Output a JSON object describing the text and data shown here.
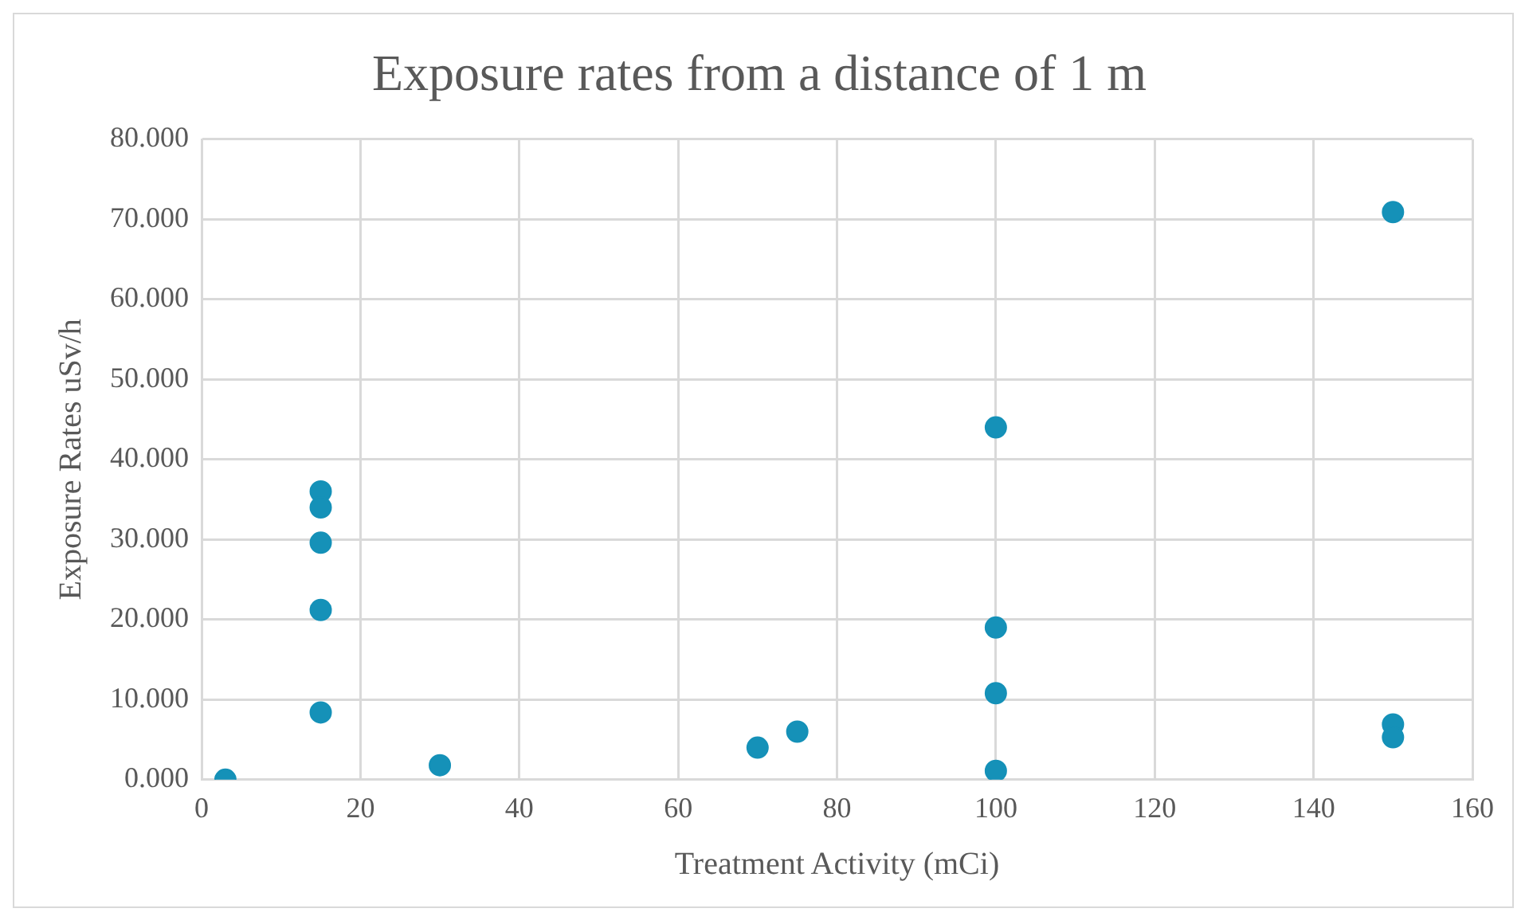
{
  "chart_data": {
    "type": "scatter",
    "title": "Exposure rates from a distance of 1 m",
    "xlabel": "Treatment Activity (mCi)",
    "ylabel": "Exposure Rates uSv/h",
    "x": [
      3,
      15,
      15,
      15,
      15,
      15,
      30,
      70,
      75,
      100,
      100,
      100,
      100,
      150,
      150,
      150
    ],
    "values": [
      0,
      36.0,
      34.0,
      29.6,
      21.2,
      8.4,
      1.8,
      4.0,
      6.0,
      44.0,
      19.0,
      10.8,
      1.1,
      70.9,
      6.9,
      5.3
    ],
    "color": "#1591b8",
    "marker": "circle",
    "grid": true,
    "legend": false,
    "xlim": [
      0,
      160
    ],
    "xticks": [
      0,
      20,
      40,
      60,
      80,
      100,
      120,
      140,
      160
    ],
    "ylim": [
      0,
      80
    ],
    "yticks": [
      {
        "value": 0,
        "label": "0.000"
      },
      {
        "value": 10,
        "label": "10.000"
      },
      {
        "value": 20,
        "label": "20.000"
      },
      {
        "value": 30,
        "label": "30.000"
      },
      {
        "value": 40,
        "label": "40.000"
      },
      {
        "value": 50,
        "label": "50.000"
      },
      {
        "value": 60,
        "label": "60.000"
      },
      {
        "value": 70,
        "label": "70.000"
      },
      {
        "value": 80,
        "label": "80.000"
      }
    ]
  }
}
